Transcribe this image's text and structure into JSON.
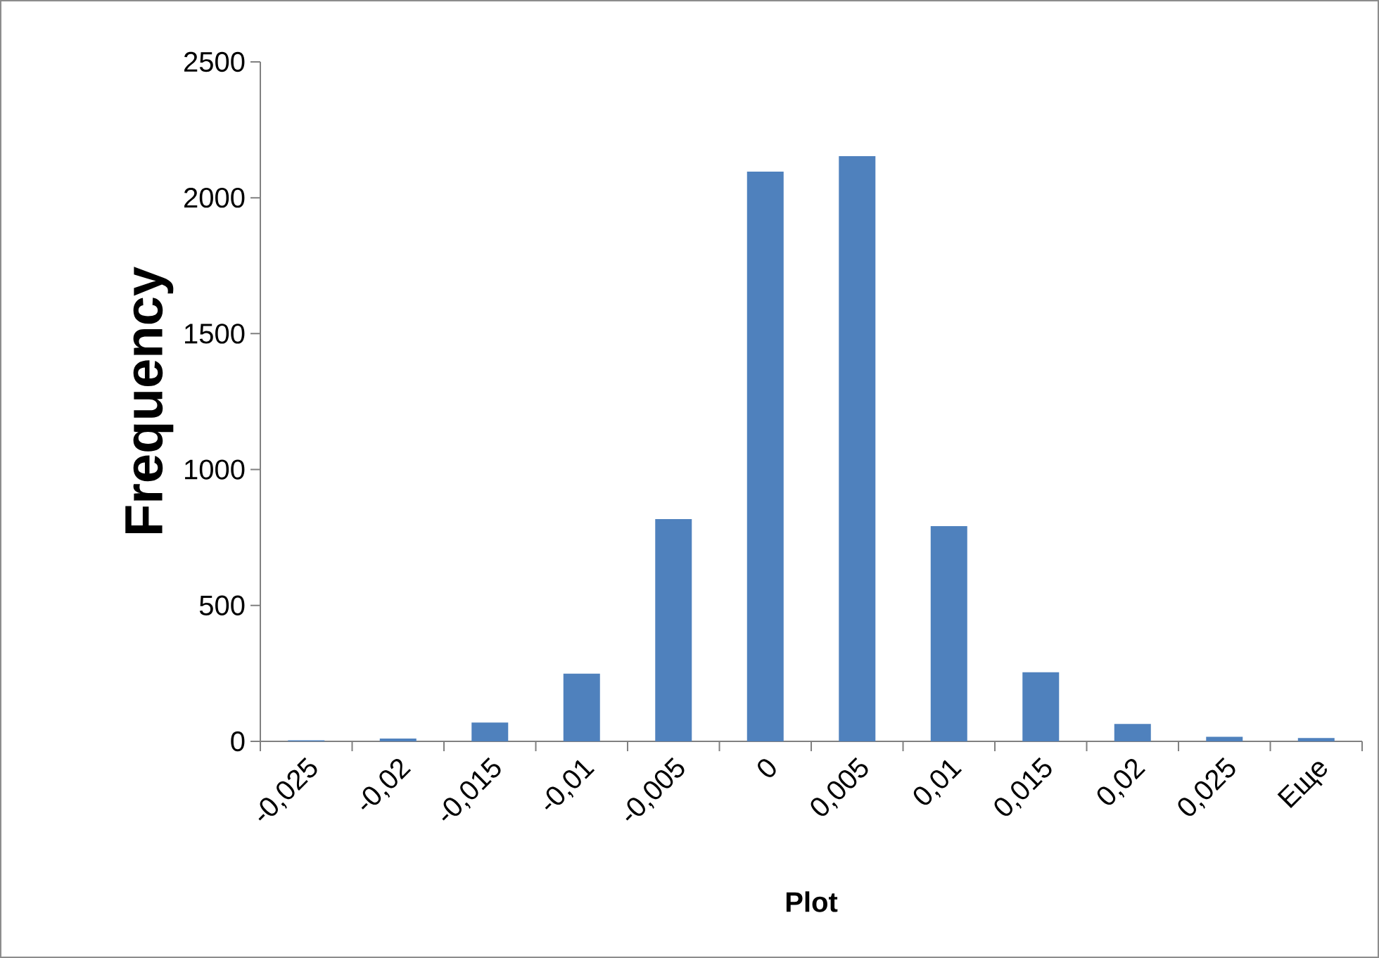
{
  "chart_data": {
    "type": "bar",
    "xlabel": "Plot",
    "ylabel": "Frequency",
    "categories": [
      "-0,025",
      "-0,02",
      "-0,015",
      "-0,01",
      "-0,005",
      "0",
      "0,005",
      "0,01",
      "0,015",
      "0,02",
      "0,025",
      "Еще"
    ],
    "values": [
      4,
      10,
      69,
      249,
      818,
      2096,
      2153,
      792,
      254,
      64,
      17,
      12
    ],
    "color": "#4f81bd",
    "ylim": [
      0,
      2500
    ],
    "yticks": [
      0,
      500,
      1000,
      1500,
      2000,
      2500
    ],
    "grid": false,
    "legend": false
  }
}
